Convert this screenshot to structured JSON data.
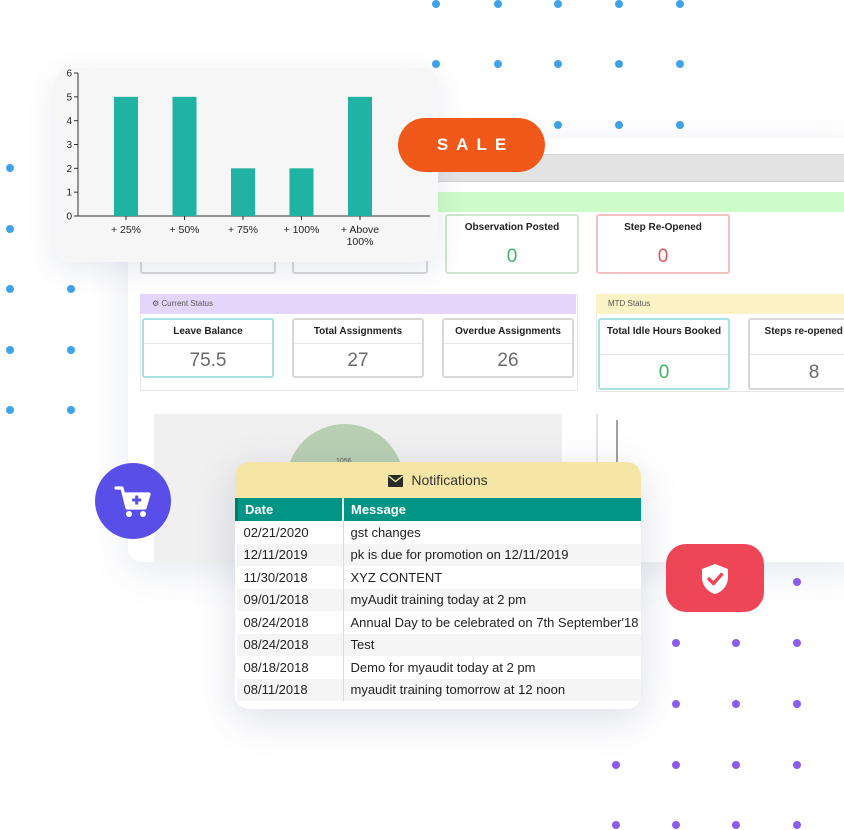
{
  "bar_chart": {
    "chart_data": {
      "type": "bar",
      "categories": [
        "+ 25%",
        "+ 50%",
        "+ 75%",
        "+ 100%",
        "+ Above 100%"
      ],
      "values": [
        5,
        5,
        2,
        2,
        5
      ],
      "title": "",
      "xlabel": "",
      "ylabel": "",
      "ylim": [
        0,
        6
      ],
      "yticks": [
        "0",
        "1",
        "2",
        "3",
        "4",
        "5",
        "6"
      ],
      "color": "#20b2a2",
      "grid": false
    }
  },
  "sale_label": "SALE",
  "dashboard": {
    "tiles_row1": [
      {
        "title": "Observation Posted",
        "value": "0",
        "style": "green"
      },
      {
        "title": "Step Re-Opened",
        "value": "0",
        "style": "red"
      }
    ],
    "current_status": {
      "header": "Current Status",
      "tiles": [
        {
          "title": "Leave Balance",
          "value": "75.5"
        },
        {
          "title": "Total Assignments",
          "value": "27"
        },
        {
          "title": "Overdue Assignments",
          "value": "26"
        }
      ]
    },
    "mtd_status": {
      "header": "MTD Status",
      "tiles": [
        {
          "title": "Total Idle Hours Booked",
          "value": "0"
        },
        {
          "title": "Steps re-opened you",
          "value": "8"
        }
      ]
    },
    "pie_label": "1056"
  },
  "notifications": {
    "title": "Notifications",
    "columns": [
      "Date",
      "Message"
    ],
    "rows": [
      {
        "date": "02/21/2020",
        "message": "gst changes"
      },
      {
        "date": "12/11/2019",
        "message": "pk is due for promotion on 12/11/2019"
      },
      {
        "date": "11/30/2018",
        "message": "XYZ CONTENT"
      },
      {
        "date": "09/01/2018",
        "message": "myAudit training today at 2 pm"
      },
      {
        "date": "08/24/2018",
        "message": "Annual Day to be celebrated on 7th September'18"
      },
      {
        "date": "08/24/2018",
        "message": "Test"
      },
      {
        "date": "08/18/2018",
        "message": "Demo for myaudit today at 2 pm"
      },
      {
        "date": "08/11/2018",
        "message": "myaudit training tomorrow at 12 noon"
      }
    ]
  },
  "icons": {
    "cart": "add-to-cart-icon",
    "shield": "shield-check-icon",
    "envelope": "envelope-icon"
  },
  "colors": {
    "sale": "#f1591b",
    "cart": "#5a4ee8",
    "shield": "#ef4657",
    "table_header": "#019585",
    "notif_header": "#f6e6a6"
  }
}
